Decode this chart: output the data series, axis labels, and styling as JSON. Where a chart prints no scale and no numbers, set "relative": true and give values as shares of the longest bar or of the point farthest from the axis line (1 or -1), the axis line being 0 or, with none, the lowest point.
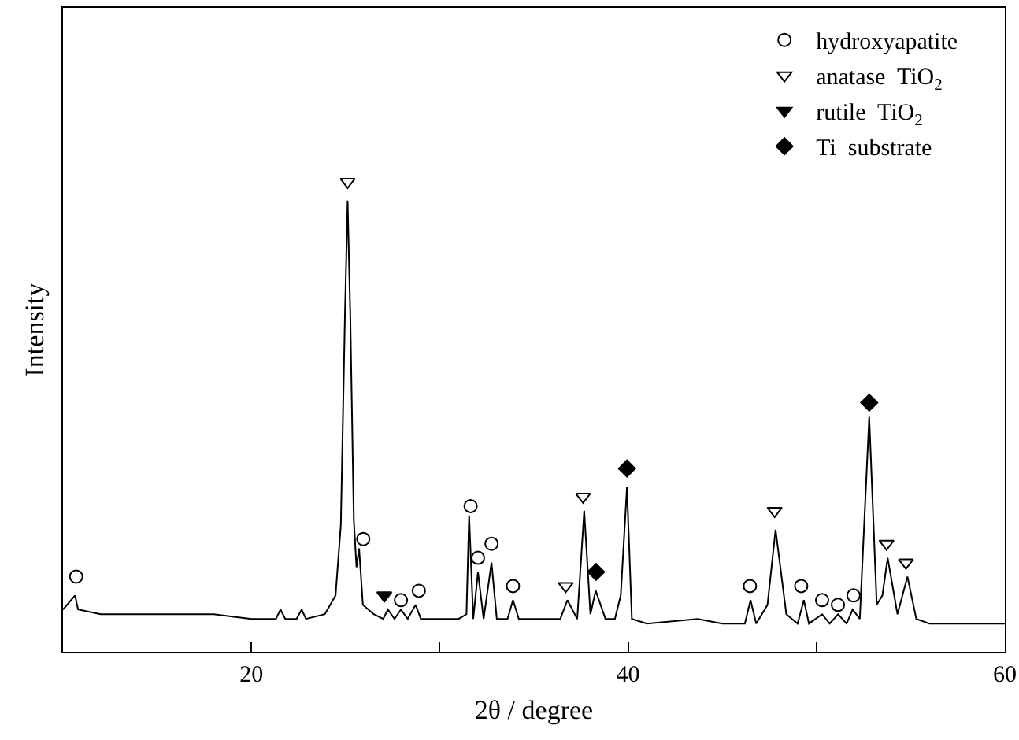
{
  "chart_data": {
    "type": "line",
    "relative": true,
    "xlabel": "2θ / degree",
    "ylabel": "Intensity",
    "xlim": [
      10,
      60
    ],
    "xticks": [
      20,
      {
        "value": 30,
        "label": null
      },
      40,
      {
        "value": 50,
        "label": null
      },
      60
    ],
    "tick_labels": "x",
    "grid": false,
    "legend": "top right",
    "series": [
      {
        "color": "#000000",
        "marker": "none",
        "line_style": "solid",
        "x": [
          10.0,
          10.64,
          10.8,
          12,
          14,
          16,
          18,
          20,
          21.3,
          21.55,
          21.8,
          22.4,
          22.67,
          22.9,
          23.9,
          24.47,
          24.75,
          24.97,
          25.11,
          25.25,
          25.44,
          25.58,
          25.72,
          25.92,
          26.5,
          27.0,
          27.25,
          27.6,
          27.94,
          28.3,
          28.72,
          29.0,
          30,
          31,
          31.42,
          31.56,
          31.78,
          32.03,
          32.33,
          32.75,
          33.03,
          33.6,
          33.89,
          34.2,
          34.89,
          35.5,
          36.4,
          36.78,
          37.3,
          37.67,
          38.0,
          38.28,
          38.8,
          39.3,
          39.61,
          39.94,
          40.2,
          41,
          43.7,
          45,
          46.2,
          46.5,
          46.8,
          47.4,
          47.83,
          48.4,
          49.0,
          49.33,
          49.6,
          50.3,
          50.7,
          51.15,
          51.6,
          51.92,
          52.3,
          52.8,
          53.2,
          53.5,
          53.78,
          54.3,
          54.83,
          55.3,
          56,
          58,
          60
        ],
        "values": [
          0.09,
          0.12,
          0.09,
          0.08,
          0.08,
          0.08,
          0.08,
          0.07,
          0.07,
          0.09,
          0.07,
          0.07,
          0.09,
          0.07,
          0.08,
          0.12,
          0.27,
          0.72,
          0.96,
          0.72,
          0.28,
          0.18,
          0.22,
          0.1,
          0.08,
          0.07,
          0.09,
          0.07,
          0.09,
          0.07,
          0.1,
          0.07,
          0.07,
          0.07,
          0.08,
          0.29,
          0.07,
          0.17,
          0.07,
          0.19,
          0.07,
          0.07,
          0.11,
          0.07,
          0.07,
          0.07,
          0.07,
          0.11,
          0.07,
          0.3,
          0.08,
          0.13,
          0.07,
          0.07,
          0.12,
          0.35,
          0.07,
          0.06,
          0.07,
          0.06,
          0.06,
          0.11,
          0.06,
          0.1,
          0.26,
          0.08,
          0.06,
          0.11,
          0.06,
          0.08,
          0.06,
          0.08,
          0.06,
          0.09,
          0.07,
          0.5,
          0.1,
          0.12,
          0.2,
          0.08,
          0.16,
          0.07,
          0.06,
          0.06,
          0.06
        ]
      },
      {
        "type": "scatter",
        "name": "hydroxyapatite",
        "color": "#000000",
        "marker": "circle-open",
        "x": [
          10.7,
          25.94,
          27.94,
          28.89,
          31.64,
          32.03,
          32.75,
          33.89,
          46.47,
          49.19,
          50.3,
          51.14,
          51.97
        ],
        "values": [
          0.16,
          0.24,
          0.11,
          0.13,
          0.31,
          0.2,
          0.23,
          0.14,
          0.14,
          0.14,
          0.11,
          0.1,
          0.12
        ]
      },
      {
        "type": "scatter",
        "name": "anatase  TiO$_{2}$",
        "color": "#000000",
        "marker": "triangle-down-open",
        "x": [
          25.11,
          36.69,
          37.61,
          47.78,
          53.72,
          54.75
        ],
        "values": [
          1.0,
          0.14,
          0.33,
          0.3,
          0.23,
          0.19
        ]
      },
      {
        "type": "scatter",
        "name": "rutile  TiO$_{2}$",
        "color": "#000000",
        "marker": "triangle-down",
        "x": [
          27.06
        ],
        "values": [
          0.12
        ]
      },
      {
        "type": "scatter",
        "name": "Ti  substrate",
        "color": "#000000",
        "marker": "diamond",
        "x": [
          38.3,
          39.94,
          52.8
        ],
        "values": [
          0.17,
          0.39,
          0.53
        ]
      }
    ]
  }
}
